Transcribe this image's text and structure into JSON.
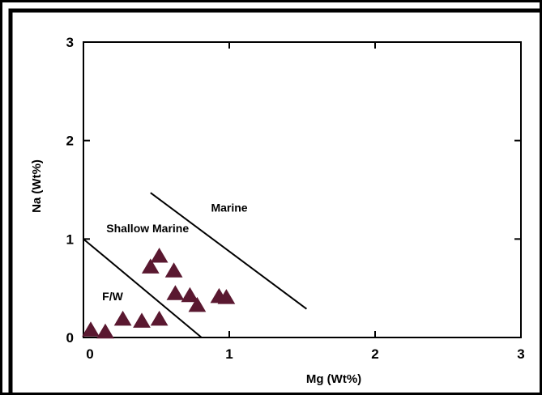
{
  "chart_data": {
    "type": "scatter",
    "title": "",
    "xlabel": "Mg (Wt%)",
    "ylabel": "Na (Wt%)",
    "xlim": [
      0,
      3
    ],
    "ylim": [
      0,
      3
    ],
    "x_ticks": [
      "0",
      "1",
      "2",
      "3"
    ],
    "y_ticks": [
      "0",
      "1",
      "2",
      "3"
    ],
    "grid": false,
    "marker": "triangle",
    "marker_color": "#5a1830",
    "points": [
      {
        "x": 0.05,
        "y": 0.07
      },
      {
        "x": 0.15,
        "y": 0.05
      },
      {
        "x": 0.27,
        "y": 0.18
      },
      {
        "x": 0.4,
        "y": 0.16
      },
      {
        "x": 0.52,
        "y": 0.18
      },
      {
        "x": 0.46,
        "y": 0.71
      },
      {
        "x": 0.52,
        "y": 0.82
      },
      {
        "x": 0.62,
        "y": 0.67
      },
      {
        "x": 0.63,
        "y": 0.44
      },
      {
        "x": 0.73,
        "y": 0.42
      },
      {
        "x": 0.78,
        "y": 0.32
      },
      {
        "x": 0.93,
        "y": 0.41
      },
      {
        "x": 0.98,
        "y": 0.4
      }
    ],
    "lines": [
      {
        "x1": 0.0,
        "y1": 1.0,
        "x2": 0.81,
        "y2": 0.0
      },
      {
        "x1": 0.46,
        "y1": 1.47,
        "x2": 1.53,
        "y2": 0.29
      }
    ],
    "annotations": [
      {
        "text": "Marine",
        "x": 1.0,
        "y": 1.28
      },
      {
        "text": "Shallow Marine",
        "x": 0.44,
        "y": 1.07
      },
      {
        "text": "F/W",
        "x": 0.2,
        "y": 0.38
      }
    ]
  }
}
